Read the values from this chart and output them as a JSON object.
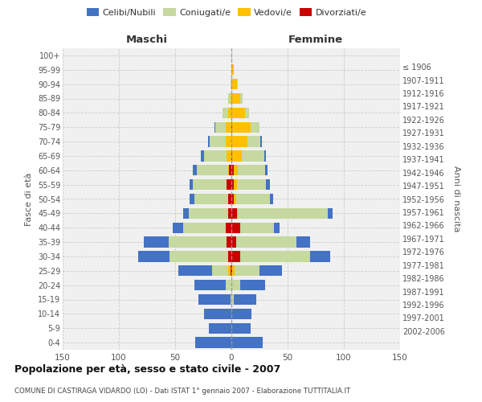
{
  "age_groups": [
    "0-4",
    "5-9",
    "10-14",
    "15-19",
    "20-24",
    "25-29",
    "30-34",
    "35-39",
    "40-44",
    "45-49",
    "50-54",
    "55-59",
    "60-64",
    "65-69",
    "70-74",
    "75-79",
    "80-84",
    "85-89",
    "90-94",
    "95-99",
    "100+"
  ],
  "birth_years": [
    "2002-2006",
    "1997-2001",
    "1992-1996",
    "1987-1991",
    "1982-1986",
    "1977-1981",
    "1972-1976",
    "1967-1971",
    "1962-1966",
    "1957-1961",
    "1952-1956",
    "1947-1951",
    "1942-1946",
    "1937-1941",
    "1932-1936",
    "1927-1931",
    "1922-1926",
    "1917-1921",
    "1912-1916",
    "1907-1911",
    "≤ 1906"
  ],
  "maschi_celibi": [
    32,
    20,
    24,
    28,
    28,
    30,
    28,
    22,
    9,
    5,
    4,
    3,
    3,
    3,
    2,
    1,
    0,
    0,
    0,
    0,
    0
  ],
  "maschi_coniugati": [
    0,
    0,
    0,
    1,
    5,
    14,
    52,
    52,
    38,
    35,
    30,
    30,
    28,
    20,
    14,
    9,
    5,
    2,
    1,
    0,
    0
  ],
  "maschi_vedovi": [
    0,
    0,
    0,
    0,
    0,
    2,
    0,
    0,
    0,
    0,
    0,
    0,
    1,
    4,
    5,
    5,
    3,
    1,
    0,
    0,
    0
  ],
  "maschi_div": [
    0,
    0,
    0,
    0,
    0,
    1,
    3,
    4,
    5,
    3,
    3,
    4,
    2,
    0,
    0,
    0,
    0,
    0,
    0,
    0,
    0
  ],
  "femmine_nubili": [
    28,
    17,
    18,
    20,
    22,
    20,
    18,
    12,
    5,
    4,
    3,
    3,
    2,
    2,
    1,
    0,
    0,
    0,
    0,
    0,
    0
  ],
  "femmine_coniugate": [
    0,
    0,
    0,
    2,
    8,
    22,
    62,
    54,
    30,
    80,
    30,
    26,
    24,
    20,
    12,
    8,
    4,
    2,
    1,
    0,
    0
  ],
  "femmine_vedove": [
    0,
    0,
    0,
    0,
    0,
    2,
    0,
    0,
    0,
    1,
    2,
    3,
    4,
    8,
    14,
    16,
    12,
    8,
    5,
    2,
    0
  ],
  "femmine_div": [
    0,
    0,
    0,
    0,
    0,
    1,
    8,
    4,
    8,
    5,
    2,
    2,
    2,
    1,
    0,
    1,
    0,
    0,
    0,
    0,
    0
  ],
  "colors": {
    "celibi": "#4472c4",
    "coniugati": "#c5d9a0",
    "vedovi": "#ffc000",
    "divorziati": "#cc0000"
  },
  "xlim": 150,
  "title": "Popolazione per età, sesso e stato civile - 2007",
  "subtitle": "COMUNE DI CASTIRAGA VIDARDO (LO) - Dati ISTAT 1° gennaio 2007 - Elaborazione TUTTITALIA.IT",
  "ylabel_left": "Fasce di età",
  "ylabel_right": "Anni di nascita",
  "legend_labels": [
    "Celibi/Nubili",
    "Coniugati/e",
    "Vedovi/e",
    "Divorziati/e"
  ],
  "maschi_label": "Maschi",
  "femmine_label": "Femmine",
  "bg_color": "#ffffff",
  "plot_bg_color": "#f0f0f0",
  "grid_color": "#cccccc",
  "bar_height": 0.75
}
